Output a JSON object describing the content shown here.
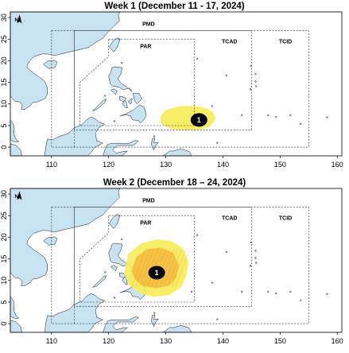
{
  "panels": [
    {
      "title": "Week 1 (December 11 - 17, 2024)",
      "region_labels": {
        "pmd": "PMD",
        "par": "PAR",
        "tcad": "TCAD",
        "tcid": "TCID"
      },
      "marker": {
        "label": "1",
        "lon": 135.8,
        "lat": 6.3
      },
      "north_label": "N"
    },
    {
      "title": "Week 2 (December 18 – 24, 2024)",
      "region_labels": {
        "pmd": "PMD",
        "par": "PAR",
        "tcad": "TCAD",
        "tcid": "TCID"
      },
      "marker": {
        "label": "1",
        "lon": 128.4,
        "lat": 11.8
      },
      "north_label": "N"
    }
  ],
  "axes": {
    "x_ticks": [
      "110",
      "120",
      "130",
      "140",
      "150",
      "160"
    ],
    "y_ticks": [
      "0",
      "5",
      "10",
      "15",
      "20",
      "25",
      "30"
    ]
  },
  "colors": {
    "sea": "#ffffff",
    "land": "#c7e3f2",
    "coast": "#1a1a1a",
    "outer_yellow": "#f7ec5a",
    "inner_orange": "#f5b23a",
    "marker": "#000000"
  }
}
